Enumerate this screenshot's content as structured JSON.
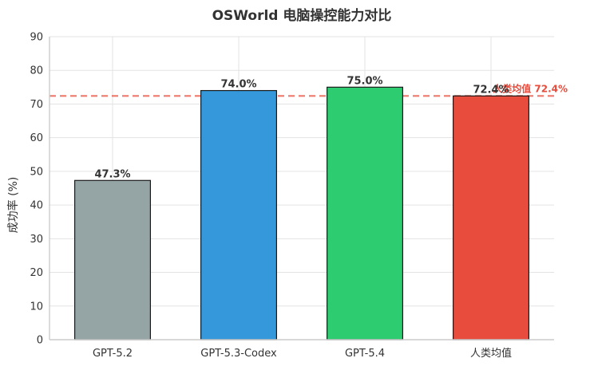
{
  "chart_data": {
    "type": "bar",
    "title": "OSWorld 电脑操控能力对比",
    "xlabel": "",
    "ylabel": "成功率 (%)",
    "categories": [
      "GPT-5.2",
      "GPT-5.3-Codex",
      "GPT-5.4",
      "人类均值"
    ],
    "values": [
      47.3,
      74.0,
      75.0,
      72.4
    ],
    "value_labels": [
      "47.3%",
      "74.0%",
      "75.0%",
      "72.4%"
    ],
    "colors": [
      "#95a5a6",
      "#3498db",
      "#2ecc71",
      "#e74c3c"
    ],
    "ylim": [
      0,
      90
    ],
    "yticks": [
      "0",
      "10",
      "20",
      "30",
      "40",
      "50",
      "60",
      "70",
      "80",
      "90"
    ],
    "reference_line": {
      "value": 72.4,
      "label": "人类均值 72.4%",
      "color": "#e74c3c",
      "style": "dashed"
    },
    "grid": true,
    "legend": "none"
  }
}
